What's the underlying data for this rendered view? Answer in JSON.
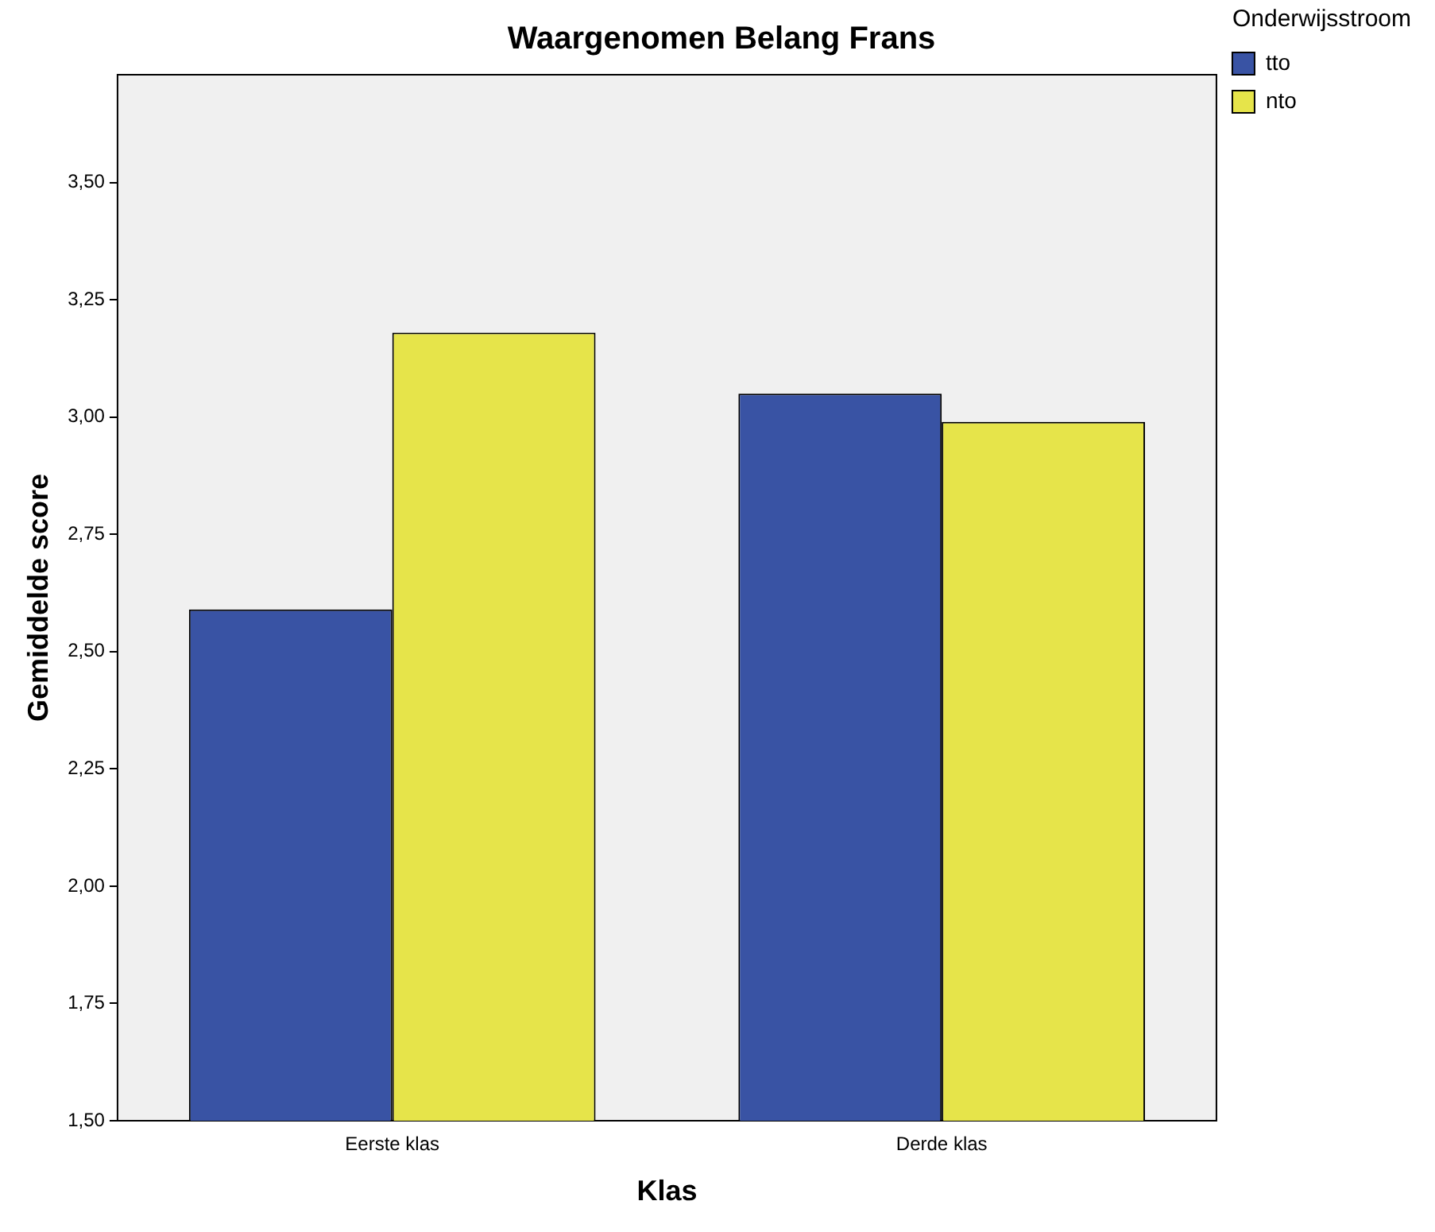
{
  "chart_data": {
    "type": "bar",
    "title": "Waargenomen Belang Frans",
    "xlabel": "Klas",
    "ylabel": "Gemiddelde score",
    "legend_title": "Onderwijsstroom",
    "categories": [
      "Eerste klas",
      "Derde klas"
    ],
    "series": [
      {
        "name": "tto",
        "color": "#3953a4",
        "values": [
          2.59,
          3.05
        ]
      },
      {
        "name": "nto",
        "color": "#e6e44a",
        "values": [
          3.18,
          2.99
        ]
      }
    ],
    "ylim": [
      1.5,
      3.73
    ],
    "yticks": [
      {
        "value": 1.5,
        "label": "1,50"
      },
      {
        "value": 1.75,
        "label": "1,75"
      },
      {
        "value": 2,
        "label": "2,00"
      },
      {
        "value": 2.25,
        "label": "2,25"
      },
      {
        "value": 2.5,
        "label": "2,50"
      },
      {
        "value": 2.75,
        "label": "2,75"
      },
      {
        "value": 3,
        "label": "3,00"
      },
      {
        "value": 3.25,
        "label": "3,25"
      },
      {
        "value": 3.5,
        "label": "3,50"
      }
    ],
    "grid": false,
    "legend": "top right"
  }
}
